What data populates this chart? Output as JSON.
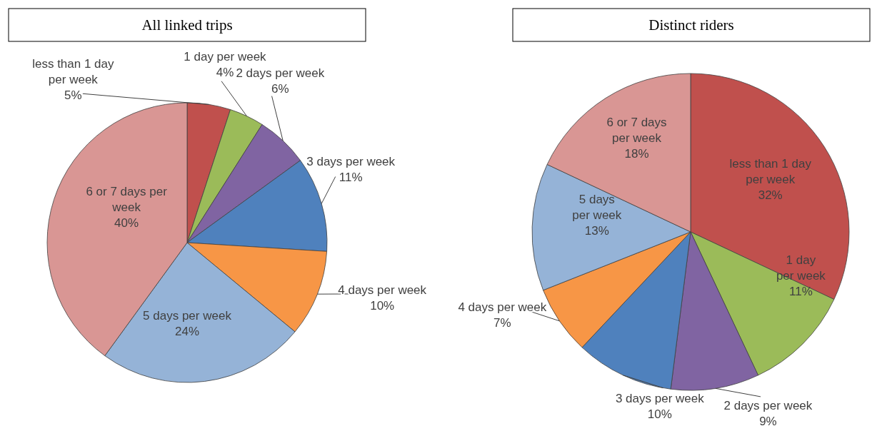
{
  "chart_data": [
    {
      "type": "pie",
      "title": "All linked trips",
      "categories": [
        "less than 1 day per week",
        "1 day per week",
        "2 days per week",
        "3 days per week",
        "4 days per week",
        "5 days per week",
        "6 or 7 days per week"
      ],
      "values": [
        5,
        4,
        6,
        11,
        10,
        24,
        40
      ],
      "colors": [
        "#c0504d",
        "#9bbb59",
        "#8064a2",
        "#4f81bd",
        "#f79646",
        "#95b3d7",
        "#d99694"
      ],
      "value_labels": [
        "5%",
        "4%",
        "6%",
        "11%",
        "10%",
        "24%",
        "40%"
      ]
    },
    {
      "type": "pie",
      "title": "Distinct riders",
      "categories": [
        "less than 1 day per week",
        "1 day per week",
        "2 days per week",
        "3 days per week",
        "4 days per week",
        "5 days per week",
        "6 or 7 days per week"
      ],
      "values": [
        32,
        11,
        9,
        10,
        7,
        13,
        18
      ],
      "colors": [
        "#c0504d",
        "#9bbb59",
        "#8064a2",
        "#4f81bd",
        "#f79646",
        "#95b3d7",
        "#d99694"
      ],
      "value_labels": [
        "32%",
        "11%",
        "9%",
        "10%",
        "7%",
        "13%",
        "18%"
      ]
    }
  ]
}
